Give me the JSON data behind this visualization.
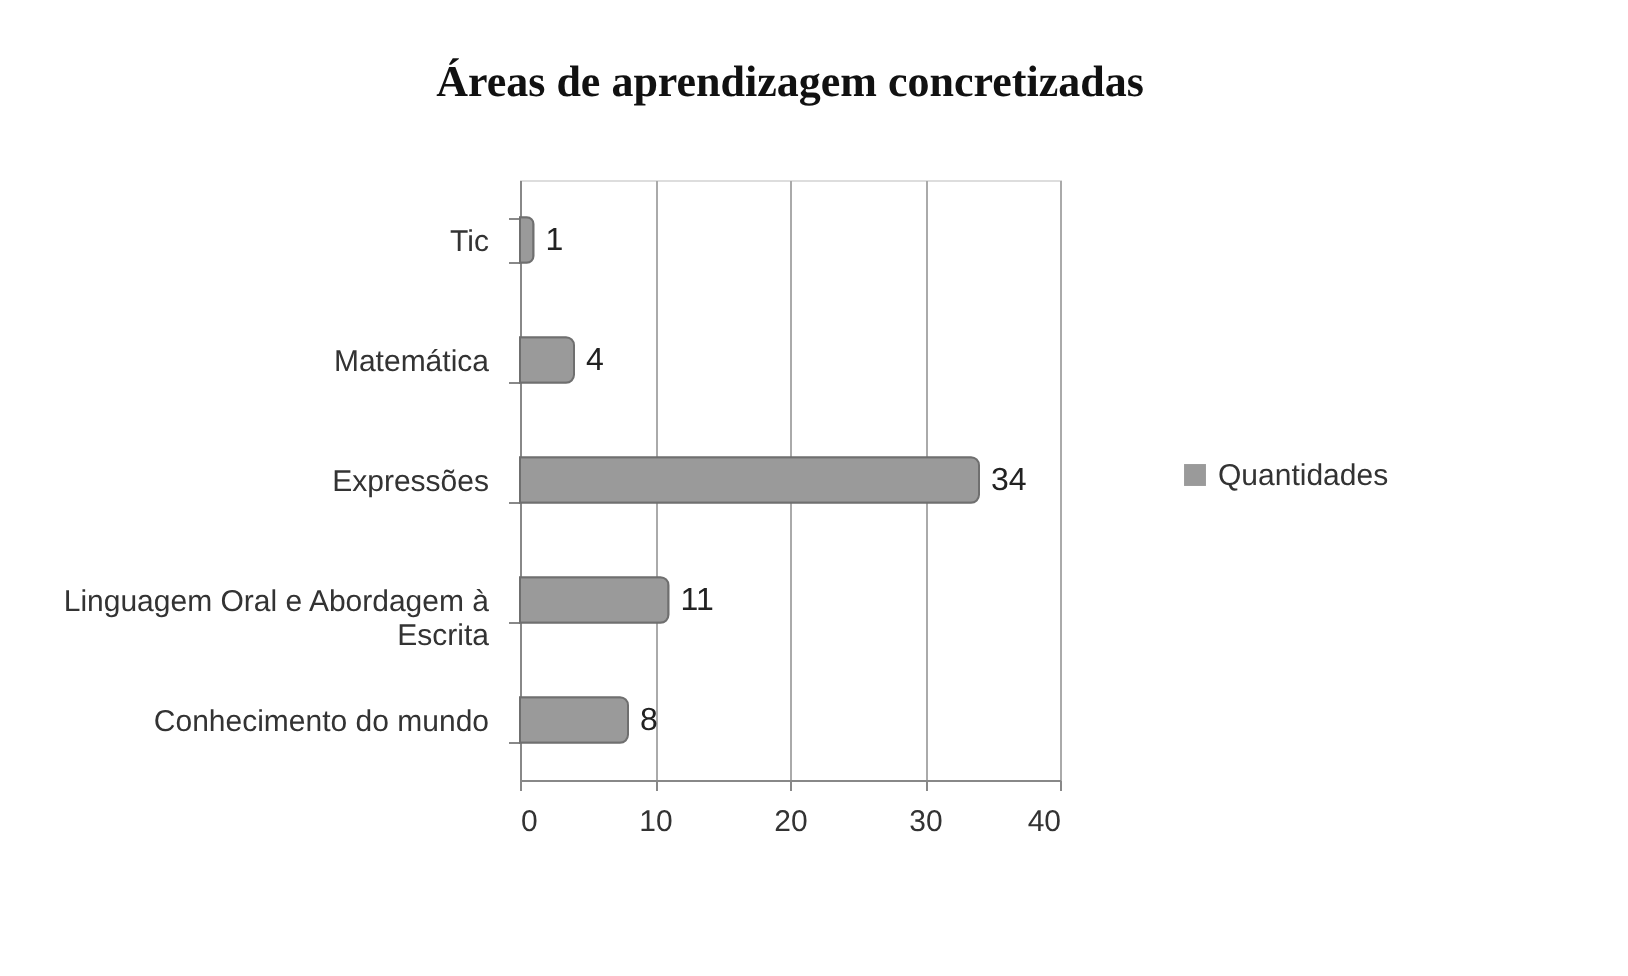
{
  "chart_data": {
    "type": "bar",
    "orientation": "horizontal",
    "title": "Áreas de aprendizagem concretizadas",
    "categories": [
      "Tic",
      "Matemática",
      "Expressões",
      "Linguagem Oral e Abordagem à Escrita",
      "Conhecimento do mundo"
    ],
    "series": [
      {
        "name": "Quantidades",
        "color": "#9a9a9a",
        "values": [
          1,
          4,
          34,
          11,
          8
        ]
      }
    ],
    "xlim": [
      0,
      40
    ],
    "xticks": [
      0,
      10,
      20,
      30,
      40
    ],
    "grid": "x",
    "legend": "right",
    "data_labels": true
  }
}
